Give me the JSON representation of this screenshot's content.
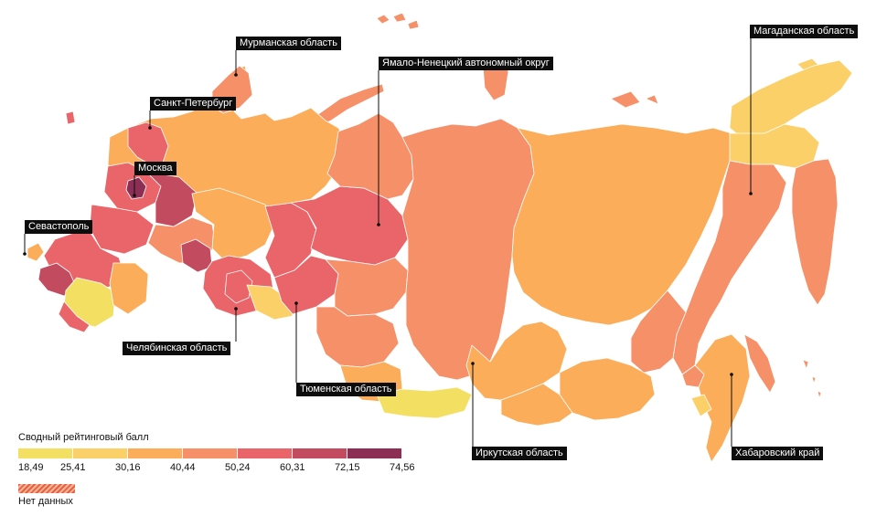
{
  "map": {
    "legend": {
      "title": "Сводный рейтинговый балл",
      "bins": [
        {
          "color": "#f3df62"
        },
        {
          "color": "#fcd068"
        },
        {
          "color": "#fbad5a"
        },
        {
          "color": "#f69068"
        },
        {
          "color": "#ea6569"
        },
        {
          "color": "#c34b5f"
        },
        {
          "color": "#8d2e55"
        }
      ],
      "ticks": [
        "18,49",
        "25,41",
        "30,16",
        "40,44",
        "50,24",
        "60,31",
        "72,15",
        "74,56"
      ],
      "no_data_label": "Нет данных",
      "no_data_color": "#e8603c"
    },
    "labels": {
      "murmansk": "Мурманская область",
      "yamal": "Ямало-Ненецкий автономный округ",
      "magadan": "Магаданская область",
      "spb": "Санкт-Петербург",
      "moscow": "Москва",
      "sevastopol": "Севастополь",
      "chelyabinsk": "Челябинская область",
      "tyumen": "Тюменская область",
      "irkutsk": "Иркутская область",
      "khabarovsk": "Хабаровский край"
    }
  }
}
